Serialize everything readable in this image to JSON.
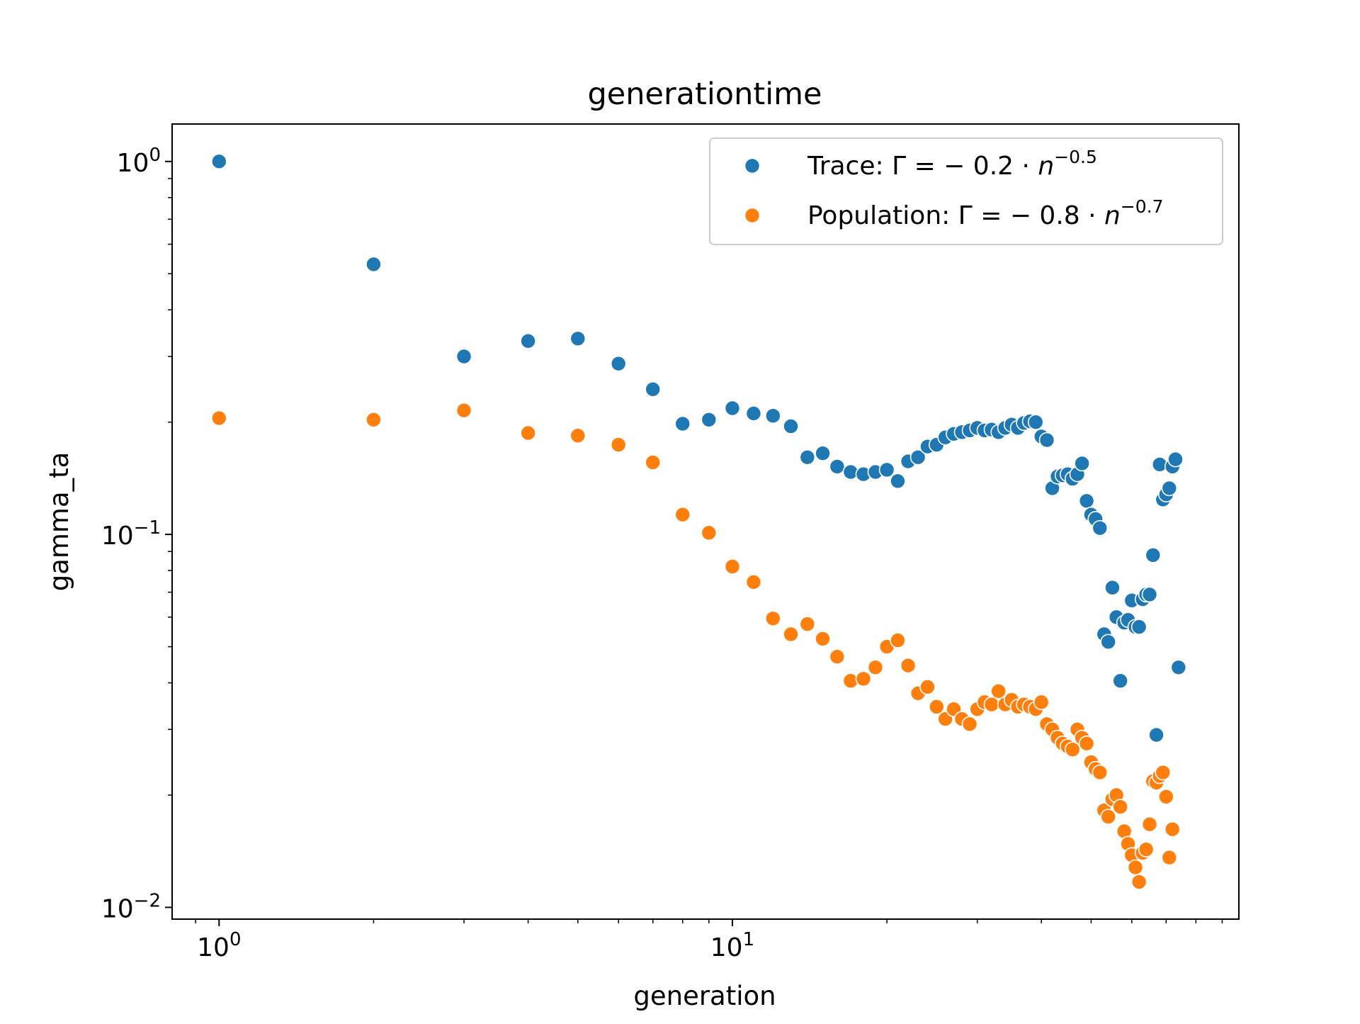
{
  "chart_data": {
    "type": "scatter",
    "title": "generationtime",
    "xlabel": "generation",
    "ylabel": "gamma_ta",
    "xscale": "log",
    "yscale": "log",
    "xlim": [
      0.81,
      97
    ],
    "ylim": [
      0.0093,
      1.26
    ],
    "grid": false,
    "legend_position": "top-right",
    "x_ticks": [
      {
        "value": 1,
        "base": "10",
        "exp": "0"
      },
      {
        "value": 10,
        "base": "10",
        "exp": "1"
      }
    ],
    "y_ticks": [
      {
        "value": 0.01,
        "base": "10",
        "exp": "−2"
      },
      {
        "value": 0.1,
        "base": "10",
        "exp": "−1"
      },
      {
        "value": 1,
        "base": "10",
        "exp": "0"
      }
    ],
    "series": [
      {
        "name": "Trace: Γ = − 0.2 · n^−0.5",
        "legend": {
          "prefix": "Trace: Γ = − 0.2 · ",
          "var": "n",
          "exp": "−0.5"
        },
        "color": "#1f77b4",
        "points": [
          [
            1,
            1.0
          ],
          [
            2,
            0.53
          ],
          [
            3,
            0.3
          ],
          [
            4,
            0.33
          ],
          [
            5,
            0.335
          ],
          [
            6,
            0.287
          ],
          [
            7,
            0.245
          ],
          [
            8,
            0.198
          ],
          [
            9,
            0.203
          ],
          [
            10,
            0.218
          ],
          [
            11,
            0.211
          ],
          [
            12,
            0.208
          ],
          [
            13,
            0.195
          ],
          [
            14,
            0.161
          ],
          [
            15,
            0.165
          ],
          [
            16,
            0.152
          ],
          [
            17,
            0.147
          ],
          [
            18,
            0.145
          ],
          [
            19,
            0.147
          ],
          [
            20,
            0.149
          ],
          [
            21,
            0.139
          ],
          [
            22,
            0.157
          ],
          [
            23,
            0.161
          ],
          [
            24,
            0.172
          ],
          [
            25,
            0.174
          ],
          [
            26,
            0.182
          ],
          [
            27,
            0.186
          ],
          [
            28,
            0.188
          ],
          [
            29,
            0.19
          ],
          [
            30,
            0.193
          ],
          [
            31,
            0.19
          ],
          [
            32,
            0.191
          ],
          [
            33,
            0.188
          ],
          [
            34,
            0.193
          ],
          [
            35,
            0.197
          ],
          [
            36,
            0.193
          ],
          [
            37,
            0.199
          ],
          [
            38,
            0.201
          ],
          [
            39,
            0.2
          ],
          [
            40,
            0.183
          ],
          [
            41,
            0.179
          ],
          [
            42,
            0.133
          ],
          [
            43,
            0.143
          ],
          [
            44,
            0.144
          ],
          [
            45,
            0.145
          ],
          [
            46,
            0.141
          ],
          [
            47,
            0.145
          ],
          [
            48,
            0.155
          ],
          [
            49,
            0.123
          ],
          [
            50,
            0.113
          ],
          [
            51,
            0.11
          ],
          [
            52,
            0.104
          ],
          [
            53,
            0.054
          ],
          [
            54,
            0.0515
          ],
          [
            55,
            0.072
          ],
          [
            56,
            0.06
          ],
          [
            57,
            0.0405
          ],
          [
            58,
            0.058
          ],
          [
            59,
            0.059
          ],
          [
            60,
            0.0665
          ],
          [
            61,
            0.0565
          ],
          [
            62,
            0.0565
          ],
          [
            63,
            0.067
          ],
          [
            64,
            0.069
          ],
          [
            65,
            0.069
          ],
          [
            66,
            0.088
          ],
          [
            67,
            0.029
          ],
          [
            68,
            0.154
          ],
          [
            69,
            0.124
          ],
          [
            70,
            0.128
          ],
          [
            71,
            0.133
          ],
          [
            72,
            0.152
          ],
          [
            73,
            0.159
          ],
          [
            74,
            0.044
          ]
        ]
      },
      {
        "name": "Population: Γ = − 0.8 · n^−0.7",
        "legend": {
          "prefix": "Population: Γ = − 0.8 · ",
          "var": "n",
          "exp": "−0.7"
        },
        "color": "#ff7f0e",
        "points": [
          [
            1,
            0.205
          ],
          [
            2,
            0.203
          ],
          [
            3,
            0.215
          ],
          [
            4,
            0.187
          ],
          [
            5,
            0.184
          ],
          [
            6,
            0.174
          ],
          [
            7,
            0.156
          ],
          [
            8,
            0.113
          ],
          [
            9,
            0.101
          ],
          [
            10,
            0.082
          ],
          [
            11,
            0.0745
          ],
          [
            12,
            0.0595
          ],
          [
            13,
            0.054
          ],
          [
            14,
            0.0575
          ],
          [
            15,
            0.0525
          ],
          [
            16,
            0.047
          ],
          [
            17,
            0.0405
          ],
          [
            18,
            0.041
          ],
          [
            19,
            0.044
          ],
          [
            20,
            0.05
          ],
          [
            21,
            0.052
          ],
          [
            22,
            0.0445
          ],
          [
            23,
            0.0375
          ],
          [
            24,
            0.039
          ],
          [
            25,
            0.0345
          ],
          [
            26,
            0.032
          ],
          [
            27,
            0.034
          ],
          [
            28,
            0.032
          ],
          [
            29,
            0.031
          ],
          [
            30,
            0.034
          ],
          [
            31,
            0.0355
          ],
          [
            32,
            0.035
          ],
          [
            33,
            0.038
          ],
          [
            34,
            0.035
          ],
          [
            35,
            0.036
          ],
          [
            36,
            0.0345
          ],
          [
            37,
            0.035
          ],
          [
            38,
            0.0345
          ],
          [
            39,
            0.034
          ],
          [
            40,
            0.0355
          ],
          [
            41,
            0.031
          ],
          [
            42,
            0.03
          ],
          [
            43,
            0.0285
          ],
          [
            44,
            0.0275
          ],
          [
            45,
            0.027
          ],
          [
            46,
            0.0265
          ],
          [
            47,
            0.03
          ],
          [
            48,
            0.0285
          ],
          [
            49,
            0.0275
          ],
          [
            50,
            0.0245
          ],
          [
            51,
            0.0235
          ],
          [
            52,
            0.023
          ],
          [
            53,
            0.0182
          ],
          [
            54,
            0.0175
          ],
          [
            55,
            0.0195
          ],
          [
            56,
            0.02
          ],
          [
            57,
            0.0186
          ],
          [
            58,
            0.016
          ],
          [
            59,
            0.0148
          ],
          [
            60,
            0.0138
          ],
          [
            61,
            0.0128
          ],
          [
            62,
            0.0117
          ],
          [
            63,
            0.014
          ],
          [
            64,
            0.0143
          ],
          [
            65,
            0.0167
          ],
          [
            66,
            0.0218
          ],
          [
            67,
            0.0216
          ],
          [
            68,
            0.0225
          ],
          [
            69,
            0.023
          ],
          [
            70,
            0.0198
          ],
          [
            71,
            0.0136
          ],
          [
            72,
            0.0162
          ]
        ]
      }
    ]
  }
}
